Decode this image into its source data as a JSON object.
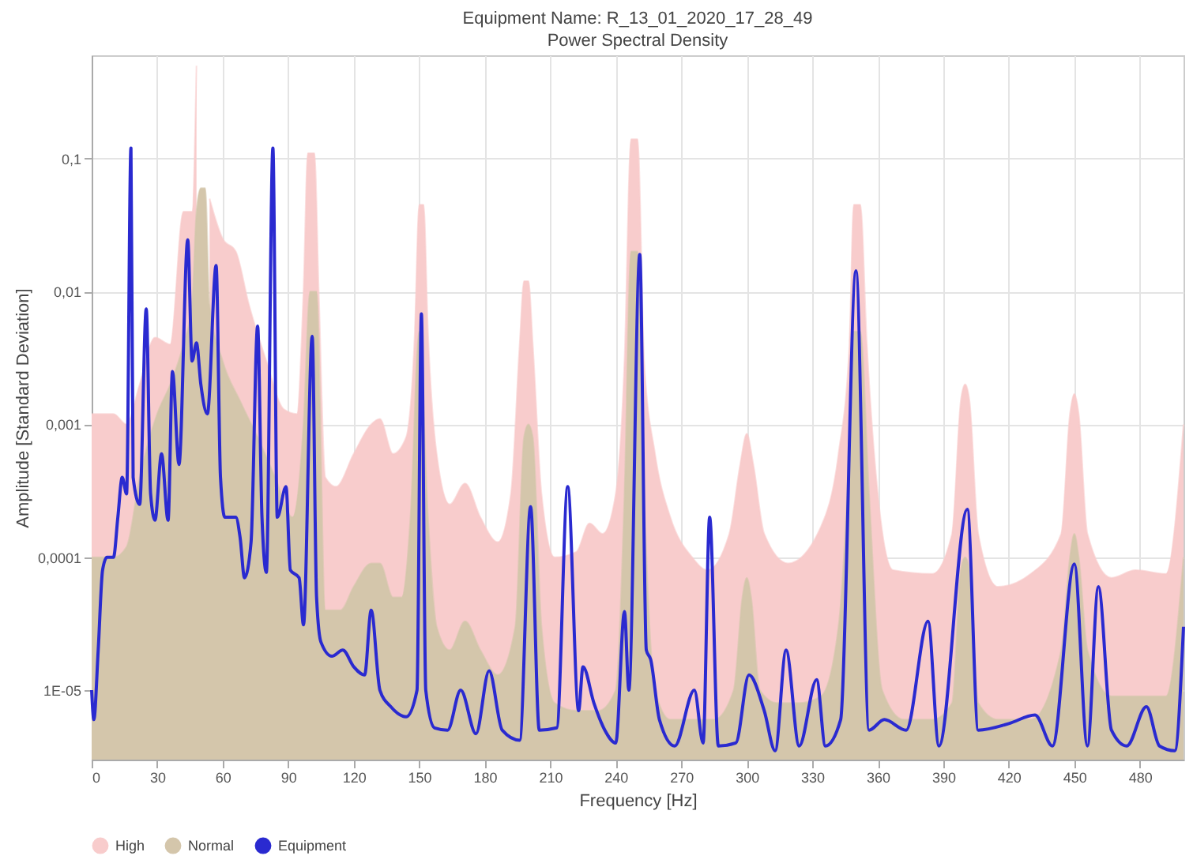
{
  "chart_data": {
    "type": "area",
    "title": "Equipment Name: R_13_01_2020_17_28_49",
    "subtitle": "Power Spectral Density",
    "xlabel": "Frequency [Hz]",
    "ylabel": "Amplitude [Standard Deviation]",
    "log": "y",
    "grid": true,
    "legend": "bottom left",
    "xlim": [
      0,
      500
    ],
    "xticks": [
      0,
      30,
      60,
      90,
      120,
      150,
      180,
      210,
      240,
      270,
      300,
      330,
      360,
      390,
      420,
      450,
      480
    ],
    "ylim": [
      3e-06,
      0.6
    ],
    "yticks": [
      {
        "value": 0.1,
        "label": "0,1"
      },
      {
        "value": 0.01,
        "label": "0,01"
      },
      {
        "value": 0.001,
        "label": "0,001"
      },
      {
        "value": 0.0001,
        "label": "0,0001"
      },
      {
        "value": 1e-05,
        "label": "1E-05"
      }
    ],
    "series": [
      {
        "name": "High",
        "color": "#f8cccc",
        "x": [
          0,
          10,
          16,
          22,
          29,
          36,
          42,
          46,
          48,
          50,
          52,
          54,
          60,
          66,
          72,
          80,
          88,
          94,
          97,
          99,
          102,
          104,
          107,
          112,
          120,
          128,
          132,
          138,
          144,
          148,
          150,
          152,
          154,
          158,
          164,
          171,
          178,
          186,
          192,
          196,
          198,
          200,
          202,
          206,
          212,
          222,
          228,
          234,
          240,
          244,
          247,
          250,
          253,
          258,
          265,
          275,
          282,
          292,
          297,
          300,
          303,
          308,
          319,
          334,
          342,
          347,
          349,
          352,
          355,
          360,
          367,
          385,
          394,
          398,
          400,
          402,
          406,
          415,
          430,
          444,
          448,
          450,
          452,
          456,
          467,
          478,
          492,
          500
        ],
        "values": [
          0.0012,
          0.0012,
          0.001,
          0.002,
          0.0045,
          0.004,
          0.04,
          0.04,
          0.5,
          null,
          null,
          0.05,
          0.025,
          0.02,
          0.008,
          0.003,
          0.0013,
          0.0012,
          0.01,
          0.11,
          0.11,
          0.01,
          0.0004,
          0.00034,
          0.0006,
          0.001,
          0.0011,
          0.0006,
          0.0008,
          0.005,
          0.045,
          0.045,
          0.005,
          0.0006,
          0.00025,
          0.00036,
          0.0002,
          0.00013,
          0.0003,
          0.004,
          0.012,
          0.012,
          0.004,
          0.0003,
          0.0001,
          0.00011,
          0.00018,
          0.00015,
          0.0003,
          0.003,
          0.14,
          0.14,
          0.003,
          0.0006,
          0.0002,
          0.0001,
          8e-05,
          0.00015,
          0.0005,
          0.00085,
          0.0005,
          0.00015,
          9e-05,
          0.00017,
          0.0006,
          0.004,
          0.045,
          0.045,
          0.004,
          0.0003,
          8e-05,
          7.5e-05,
          0.00015,
          0.0015,
          0.002,
          0.0015,
          0.00015,
          6e-05,
          7.5e-05,
          0.00015,
          0.0012,
          0.0017,
          0.0012,
          0.00015,
          7e-05,
          8e-05,
          7.5e-05,
          0.001
        ]
      },
      {
        "name": "Normal",
        "color": "#d4c6ab",
        "x": [
          0,
          10,
          16,
          22,
          30,
          36,
          42,
          46,
          48,
          50,
          52,
          54,
          60,
          68,
          76,
          84,
          92,
          97,
          100,
          103,
          107,
          114,
          120,
          128,
          132,
          138,
          142,
          146,
          150,
          154,
          158,
          164,
          171,
          178,
          186,
          194,
          198,
          200,
          202,
          206,
          212,
          222,
          232,
          240,
          244,
          247,
          250,
          253,
          258,
          265,
          275,
          285,
          294,
          298,
          300,
          302,
          306,
          314,
          324,
          334,
          342,
          346,
          349,
          352,
          356,
          362,
          372,
          385,
          394,
          398,
          400,
          402,
          406,
          415,
          430,
          444,
          448,
          450,
          452,
          456,
          467,
          478,
          492,
          500
        ],
        "values": [
          0.0001,
          0.0001,
          0.00012,
          0.0004,
          0.0012,
          0.002,
          0.004,
          0.008,
          0.04,
          0.06,
          0.06,
          0.008,
          0.003,
          0.0015,
          0.0008,
          0.0004,
          0.0002,
          0.001,
          0.01,
          0.01,
          4e-05,
          4e-05,
          6e-05,
          9e-05,
          9e-05,
          5e-05,
          5e-05,
          0.0002,
          0.005,
          0.0002,
          3e-05,
          2e-05,
          3.3e-05,
          2e-05,
          1.3e-05,
          3e-05,
          0.0008,
          0.001,
          0.0008,
          3e-05,
          8e-06,
          7e-06,
          7e-06,
          1e-05,
          0.0003,
          0.02,
          0.02,
          0.0003,
          1e-05,
          6e-06,
          6e-06,
          6e-06,
          1e-05,
          5e-05,
          7e-05,
          5e-05,
          1e-05,
          8e-06,
          8e-06,
          9e-06,
          3e-05,
          0.0003,
          0.005,
          0.005,
          0.0003,
          1e-05,
          6e-06,
          6e-06,
          8e-06,
          8e-05,
          0.0001,
          8e-05,
          8e-06,
          6e-06,
          6e-06,
          2e-05,
          0.0001,
          0.00015,
          0.0001,
          2e-05,
          9e-06,
          9e-06,
          9e-06,
          0.0001
        ]
      },
      {
        "name": "Equipment",
        "type": "line",
        "color": "#2a2ad0",
        "x": [
          0,
          1,
          3,
          5,
          7,
          10,
          12,
          14,
          16,
          18,
          19,
          22,
          25,
          27,
          29,
          32,
          35,
          37,
          40,
          44,
          46,
          48,
          50,
          53,
          57,
          59,
          61,
          66,
          68,
          70,
          73,
          76,
          78,
          80,
          83,
          85,
          89,
          91,
          95,
          97,
          101,
          103,
          105,
          110,
          115,
          120,
          125,
          128,
          132,
          137,
          144,
          149,
          151,
          153,
          157,
          163,
          169,
          176,
          182,
          188,
          196,
          201,
          205,
          213,
          218,
          223,
          225,
          230,
          235,
          240,
          244,
          246,
          251,
          254,
          256,
          260,
          267,
          276,
          280,
          283,
          287,
          295,
          301,
          308,
          313,
          318,
          324,
          332,
          336,
          343,
          350,
          356,
          363,
          373,
          383,
          388,
          401,
          406,
          420,
          432,
          440,
          450,
          456,
          461,
          467,
          474,
          483,
          489,
          496,
          500
        ],
        "values": [
          1e-05,
          6e-06,
          2e-05,
          8e-05,
          0.0001,
          0.0001,
          0.0002,
          0.0004,
          0.0003,
          0.12,
          0.0004,
          0.00025,
          0.0074,
          0.0003,
          0.00019,
          0.0006,
          0.00019,
          0.0025,
          0.0005,
          0.0245,
          0.003,
          0.0041,
          0.002,
          0.0012,
          0.0157,
          0.0004,
          0.0002,
          0.0002,
          0.00014,
          7e-05,
          0.00013,
          0.0055,
          0.0002,
          7.7e-05,
          0.12,
          0.0002,
          0.00034,
          8e-05,
          7e-05,
          3.1e-05,
          0.0046,
          5e-05,
          2.3e-05,
          1.8e-05,
          2e-05,
          1.5e-05,
          1.3e-05,
          4e-05,
          1e-05,
          7.5e-06,
          6.3e-06,
          1e-05,
          0.0068,
          1e-05,
          5.2e-06,
          5e-06,
          1e-05,
          4.7e-06,
          1.4e-05,
          5e-06,
          4.2e-06,
          0.00024,
          5e-06,
          5.2e-06,
          0.00034,
          7e-06,
          1.5e-05,
          8e-06,
          5e-06,
          4e-06,
          3.9e-05,
          1e-05,
          0.019,
          2e-05,
          1.7e-05,
          6e-06,
          3.8e-06,
          1e-05,
          4e-06,
          0.0002,
          3.8e-06,
          4e-06,
          1.3e-05,
          7e-06,
          3.5e-06,
          2e-05,
          3.8e-06,
          1.2e-05,
          3.8e-06,
          6e-06,
          0.0143,
          5e-06,
          6e-06,
          5e-06,
          3.3e-05,
          3.8e-06,
          0.00023,
          5e-06,
          5.6e-06,
          6.5e-06,
          3.8e-06,
          8.9e-05,
          3.8e-06,
          6e-05,
          5e-06,
          3.8e-06,
          7.5e-06,
          3.8e-06,
          3.5e-06,
          3e-05
        ]
      }
    ]
  }
}
